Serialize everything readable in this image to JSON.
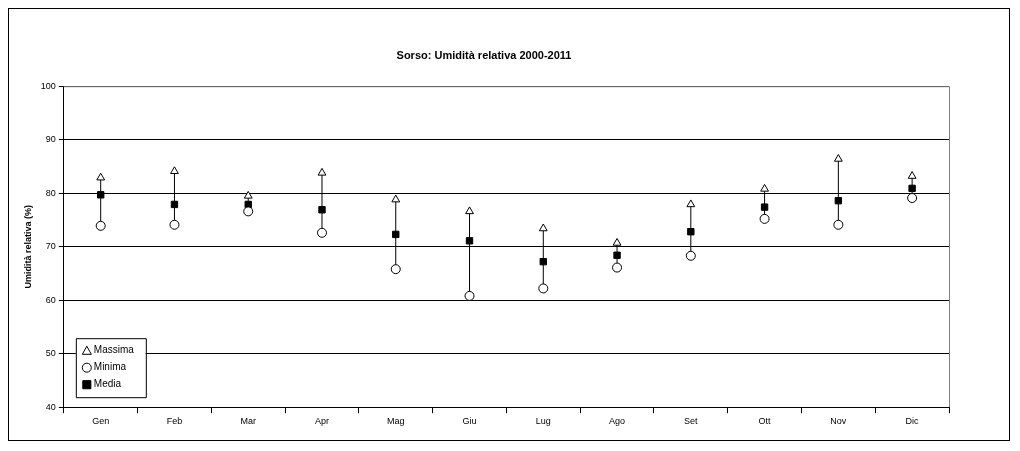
{
  "chart_data": {
    "type": "scatter",
    "title": "Sorso: Umidità relativa 2000-2011",
    "ylabel": "Umidità relativa (%)",
    "categories": [
      "Gen",
      "Feb",
      "Mar",
      "Apr",
      "Mag",
      "Giu",
      "Lug",
      "Ago",
      "Set",
      "Ott",
      "Nov",
      "Dic"
    ],
    "series": [
      {
        "name": "Massima",
        "color": "#000000",
        "marker": "triangle",
        "values": [
          82.9,
          84.1,
          79.5,
          83.8,
          78.8,
          76.6,
          73.4,
          70.7,
          77.9,
          80.8,
          86.4,
          83.2
        ]
      },
      {
        "name": "Minima",
        "color": "#000000",
        "marker": "circle",
        "values": [
          73.9,
          74.1,
          76.6,
          72.6,
          65.8,
          60.8,
          62.2,
          66.1,
          68.3,
          75.2,
          74.1,
          79.1
        ]
      },
      {
        "name": "Media",
        "color": "#000000",
        "marker": "square",
        "values": [
          79.7,
          77.9,
          77.9,
          76.9,
          72.3,
          71.1,
          67.2,
          68.4,
          72.8,
          77.4,
          78.6,
          80.9
        ]
      }
    ],
    "ylim": [
      40,
      100
    ],
    "yticks": [
      40,
      50,
      60,
      70,
      80,
      90,
      100
    ],
    "grid": "y",
    "legend": "bottom left"
  }
}
